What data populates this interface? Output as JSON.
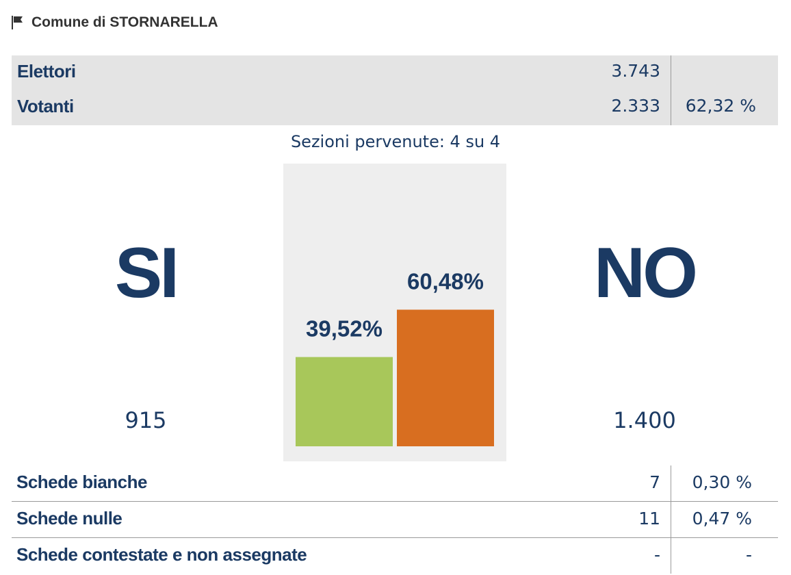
{
  "header": {
    "title": "Comune di STORNARELLA",
    "icon": "flag-icon"
  },
  "summary": {
    "elettori": {
      "label": "Elettori",
      "value": "3.743",
      "pct": ""
    },
    "votanti": {
      "label": "Votanti",
      "value": "2.333",
      "pct": "62,32 %"
    }
  },
  "sections_text": "Sezioni pervenute: 4 su 4",
  "si": {
    "label": "SI",
    "count": "915"
  },
  "no": {
    "label": "NO",
    "count": "1.400"
  },
  "colors": {
    "si": "#a8c75a",
    "no": "#d86e20",
    "text": "#1b3a63",
    "panel": "#eeeeee"
  },
  "chart_data": {
    "type": "bar",
    "categories": [
      "SI",
      "NO"
    ],
    "values": [
      39.52,
      60.48
    ],
    "labels": [
      "39,52%",
      "60,48%"
    ],
    "ylim": [
      0,
      100
    ],
    "grid": false,
    "legend": "none"
  },
  "details": [
    {
      "label": "Schede bianche",
      "value": "7",
      "pct": "0,30 %"
    },
    {
      "label": "Schede nulle",
      "value": "11",
      "pct": "0,47 %"
    },
    {
      "label": "Schede contestate e non assegnate",
      "value": "-",
      "pct": "-"
    }
  ]
}
